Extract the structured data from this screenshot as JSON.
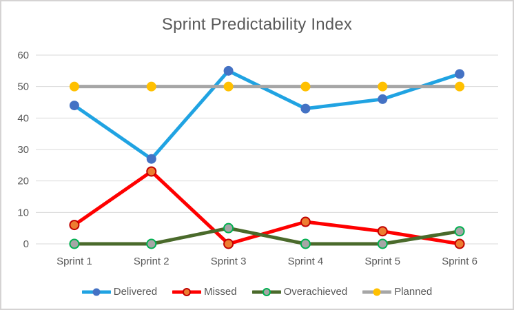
{
  "window": {
    "background": "#ffffff",
    "border_color": "#d5d3d3"
  },
  "chart_data": {
    "type": "line",
    "title": "Sprint Predictability Index",
    "categories": [
      "Sprint 1",
      "Sprint 2",
      "Sprint 3",
      "Sprint 4",
      "Sprint 5",
      "Sprint 6"
    ],
    "series": [
      {
        "name": "Delivered",
        "values": [
          44,
          27,
          55,
          43,
          46,
          54
        ],
        "line_color": "#20A3E2",
        "marker_fill": "#4472C4",
        "marker_stroke": "none"
      },
      {
        "name": "Missed",
        "values": [
          6,
          23,
          0,
          7,
          4,
          0
        ],
        "line_color": "#FE0000",
        "marker_fill": "#ED7D31",
        "marker_stroke": "#C00000"
      },
      {
        "name": "Overachieved",
        "values": [
          0,
          0,
          5,
          0,
          0,
          4
        ],
        "line_color": "#4A6A2B",
        "marker_fill": "#A6A6A6",
        "marker_stroke": "#00B050"
      },
      {
        "name": "Planned",
        "values": [
          50,
          50,
          50,
          50,
          50,
          50
        ],
        "line_color": "#A6A6A6",
        "marker_fill": "#FFC000",
        "marker_stroke": "none"
      }
    ],
    "ylim": [
      0,
      60
    ],
    "ytick_step": 10,
    "yticks": [
      "0",
      "10",
      "20",
      "30",
      "40",
      "50",
      "60"
    ],
    "grid": true,
    "legend_position": "bottom",
    "axis_text_color": "#595959",
    "title_color": "#595959",
    "grid_color": "#D9D9D9"
  }
}
